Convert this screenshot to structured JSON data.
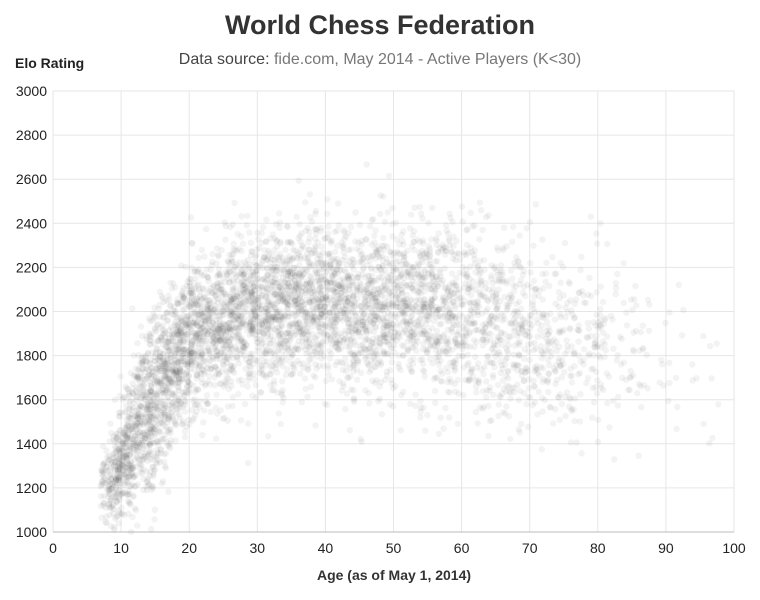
{
  "chart_data": {
    "type": "scatter",
    "title": "World Chess Federation",
    "subtitle_prefix": "Data source: ",
    "subtitle_source": "fide.com, May 2014 - Active Players (K<30)",
    "xlabel": "Age (as of May 1, 2014)",
    "ylabel": "Elo Rating",
    "xlim": [
      0,
      100
    ],
    "ylim": [
      1000,
      3000
    ],
    "x_ticks": [
      0,
      10,
      20,
      30,
      40,
      50,
      60,
      70,
      80,
      90,
      100
    ],
    "y_ticks": [
      1000,
      1200,
      1400,
      1600,
      1800,
      2000,
      2200,
      2400,
      2600,
      2800,
      3000
    ],
    "grid": true,
    "point_color": "#3a3a3a",
    "density_profile": [
      {
        "age": 8,
        "mean_rating": 1200,
        "spread": 90,
        "weight": 0.35
      },
      {
        "age": 10,
        "mean_rating": 1320,
        "spread": 140,
        "weight": 0.8
      },
      {
        "age": 12,
        "mean_rating": 1450,
        "spread": 170,
        "weight": 1.0
      },
      {
        "age": 14,
        "mean_rating": 1560,
        "spread": 190,
        "weight": 1.0
      },
      {
        "age": 16,
        "mean_rating": 1680,
        "spread": 190,
        "weight": 0.95
      },
      {
        "age": 18,
        "mean_rating": 1780,
        "spread": 180,
        "weight": 0.9
      },
      {
        "age": 20,
        "mean_rating": 1860,
        "spread": 170,
        "weight": 0.85
      },
      {
        "age": 25,
        "mean_rating": 1960,
        "spread": 170,
        "weight": 0.8
      },
      {
        "age": 30,
        "mean_rating": 2010,
        "spread": 170,
        "weight": 0.75
      },
      {
        "age": 40,
        "mean_rating": 2030,
        "spread": 175,
        "weight": 0.7
      },
      {
        "age": 50,
        "mean_rating": 2010,
        "spread": 185,
        "weight": 0.7
      },
      {
        "age": 55,
        "mean_rating": 2000,
        "spread": 190,
        "weight": 0.6
      },
      {
        "age": 60,
        "mean_rating": 1960,
        "spread": 200,
        "weight": 0.45
      },
      {
        "age": 70,
        "mean_rating": 1900,
        "spread": 210,
        "weight": 0.3
      },
      {
        "age": 80,
        "mean_rating": 1850,
        "spread": 210,
        "weight": 0.12
      },
      {
        "age": 90,
        "mean_rating": 1800,
        "spread": 200,
        "weight": 0.04
      },
      {
        "age": 98,
        "mean_rating": 1750,
        "spread": 200,
        "weight": 0.01
      }
    ]
  }
}
